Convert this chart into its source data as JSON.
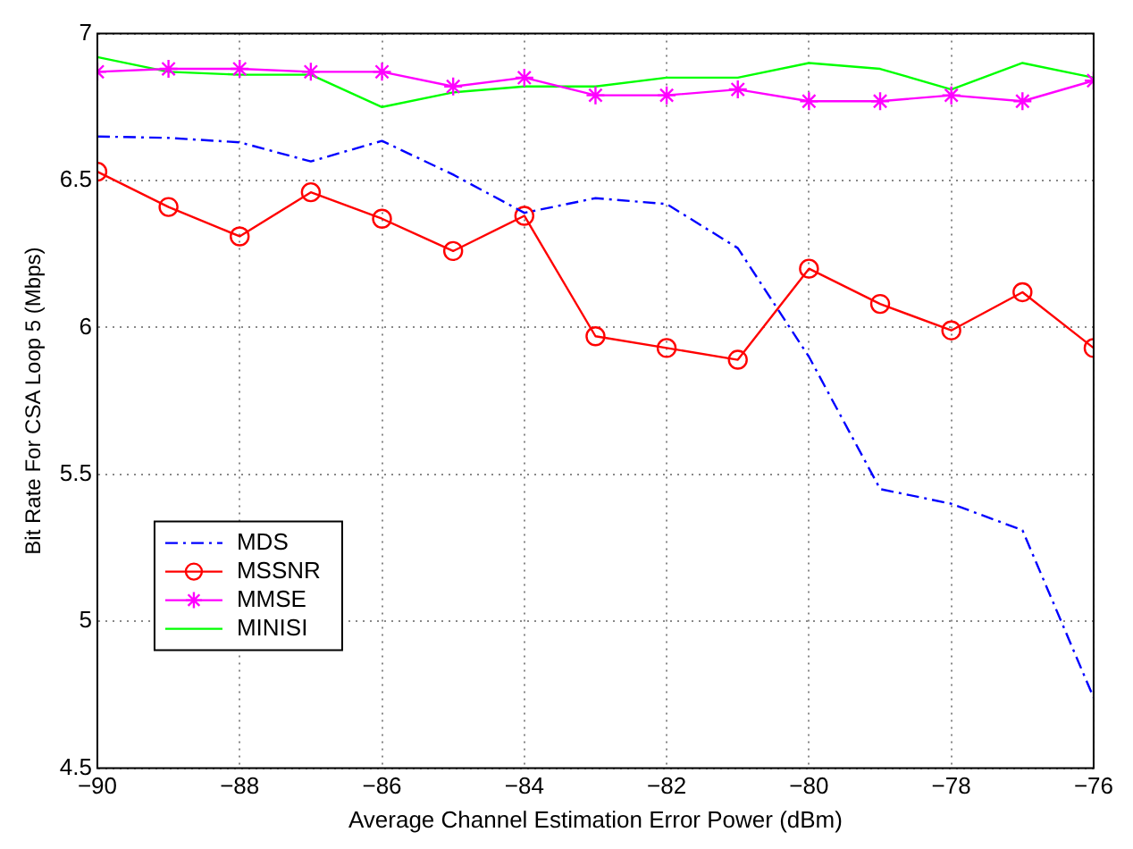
{
  "chart_data": {
    "type": "line",
    "xlabel": "Average Channel Estimation Error Power (dBm)",
    "ylabel": "Bit Rate For CSA Loop 5 (Mbps)",
    "x": [
      -90,
      -89,
      -88,
      -87,
      -86,
      -85,
      -84,
      -83,
      -82,
      -81,
      -80,
      -79,
      -78,
      -77,
      -76
    ],
    "xlim": [
      -90,
      -76
    ],
    "xticks": [
      -90,
      -88,
      -86,
      -84,
      -82,
      -80,
      -78,
      -76
    ],
    "ylim": [
      4.5,
      7
    ],
    "yticks": [
      4.5,
      5,
      5.5,
      6,
      6.5,
      7
    ],
    "grid": true,
    "legend": "bottom left",
    "series": [
      {
        "name": "MDS",
        "color": "#0000ff",
        "line_style": "dashed",
        "marker": "none",
        "values": [
          6.65,
          6.645,
          6.63,
          6.565,
          6.635,
          6.52,
          6.39,
          6.44,
          6.42,
          6.27,
          5.9,
          5.45,
          5.4,
          5.31,
          4.74
        ]
      },
      {
        "name": "MSSNR",
        "color": "#ff0000",
        "line_style": "solid",
        "marker": "circle",
        "values": [
          6.53,
          6.41,
          6.31,
          6.46,
          6.37,
          6.26,
          6.38,
          5.97,
          5.93,
          5.89,
          6.2,
          6.08,
          5.99,
          6.12,
          5.93
        ]
      },
      {
        "name": "MMSE",
        "color": "#ff00ff",
        "line_style": "solid",
        "marker": "cross",
        "values": [
          6.87,
          6.88,
          6.88,
          6.87,
          6.87,
          6.82,
          6.85,
          6.79,
          6.79,
          6.81,
          6.77,
          6.77,
          6.79,
          6.77,
          6.84
        ]
      },
      {
        "name": "MINISI",
        "color": "#00ff00",
        "line_style": "solid",
        "marker": "none",
        "values": [
          6.92,
          6.87,
          6.86,
          6.86,
          6.75,
          6.8,
          6.82,
          6.82,
          6.85,
          6.85,
          6.9,
          6.88,
          6.81,
          6.9,
          6.85
        ]
      }
    ]
  }
}
